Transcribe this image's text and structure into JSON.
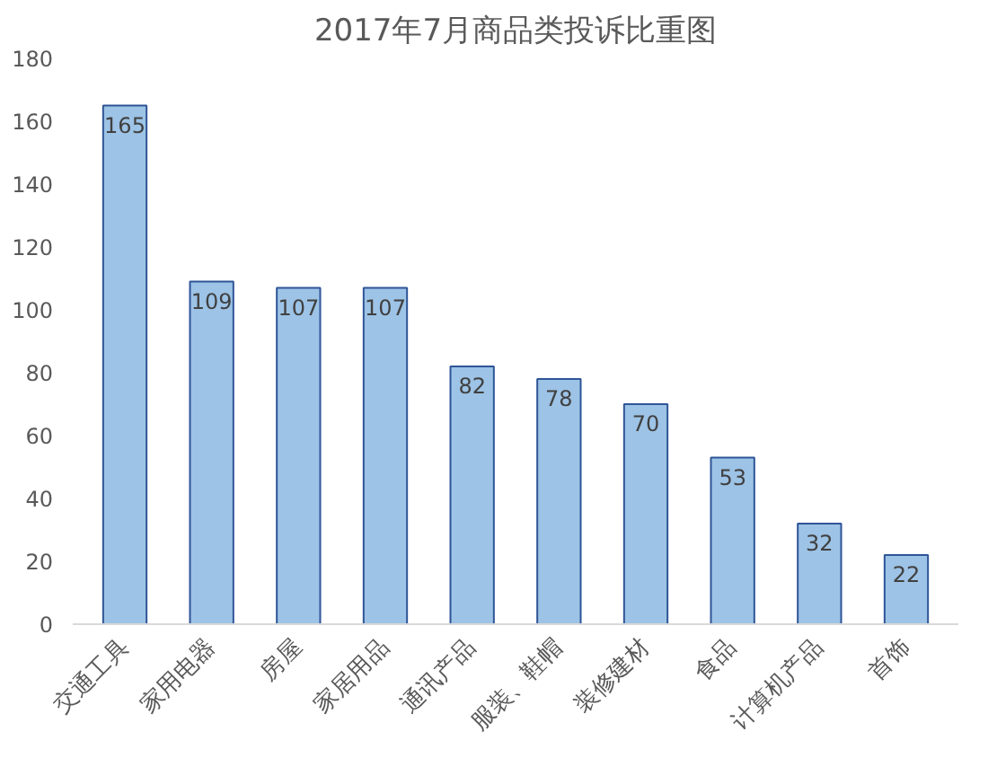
{
  "chart_data": {
    "type": "bar",
    "title": "2017年7月商品类投诉比重图",
    "categories": [
      "交通工具",
      "家用电器",
      "房屋",
      "家居用品",
      "通讯产品",
      "服装、鞋帽",
      "装修建材",
      "食品",
      "计算机产品",
      "首饰"
    ],
    "values": [
      165,
      109,
      107,
      107,
      82,
      78,
      70,
      53,
      32,
      22
    ],
    "color": "#9dc3e6",
    "ylim": [
      0,
      180
    ],
    "yticks": [
      0,
      20,
      40,
      60,
      80,
      100,
      120,
      140,
      160,
      180
    ],
    "data_labels": true,
    "grid": false
  }
}
